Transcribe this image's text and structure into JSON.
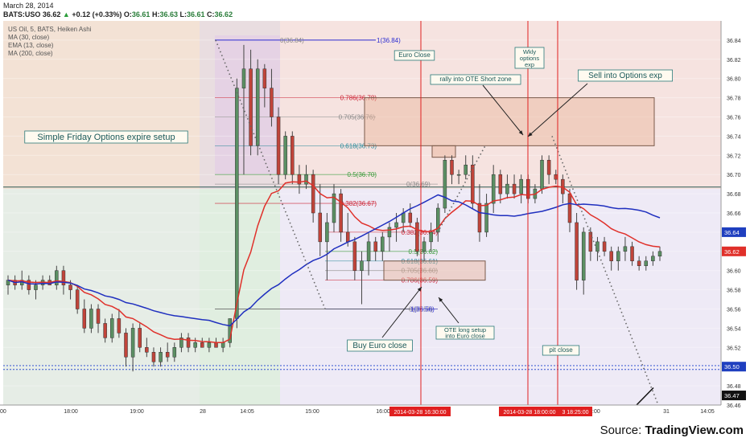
{
  "header": {
    "date": "March 28, 2014",
    "symbol": "BATS:USO",
    "last": "36.62",
    "change": "+0.12 (+0.33%)",
    "ohlc": [
      {
        "k": "O:",
        "v": "36.61"
      },
      {
        "k": "H:",
        "v": "36.63"
      },
      {
        "k": "L:",
        "v": "36.61"
      },
      {
        "k": "C:",
        "v": "36.62"
      }
    ]
  },
  "legend": {
    "title": "US Oil, 5, BATS, Heiken Ashi",
    "items": [
      "MA (30, close)",
      "EMA (13, close)",
      "MA (200, close)"
    ]
  },
  "source": {
    "prefix": "Source:",
    "brand": "TradingView.com"
  },
  "chart_data": {
    "type": "candlestick",
    "style": "Heiken Ashi",
    "title": "US Oil, 5, BATS, Heiken Ashi",
    "ylim": [
      36.46,
      36.86
    ],
    "yticks": [
      "36.84",
      "36.82",
      "36.80",
      "36.78",
      "36.76",
      "36.74",
      "36.72",
      "36.70",
      "36.68",
      "36.66",
      "36.64",
      "36.62",
      "36.60",
      "36.58",
      "36.56",
      "36.54",
      "36.52",
      "36.50",
      "36.48",
      "36.46"
    ],
    "xticks": [
      "00",
      "18:00",
      "19:00",
      "28",
      "14:05",
      "15:00",
      "16:00",
      "17:00",
      "18:00",
      "19:00",
      "31",
      "14:05"
    ],
    "markers": [
      "2014-03-28 16:30:00",
      "2014-03-28 18:00:00",
      "3 18:25:00"
    ],
    "price_tags": [
      {
        "value": "36.64",
        "color": "#1f3fbf"
      },
      {
        "value": "36.62",
        "color": "#e0302a"
      },
      {
        "value": "36.50",
        "color": "#1f3fbf"
      },
      {
        "value": "36.47",
        "color": "#111111"
      }
    ],
    "fib_upper": [
      {
        "label": "0(36.84)",
        "value": 36.84
      },
      {
        "label": "1(36.84)",
        "value": 36.84
      },
      {
        "label": "0.786(36.78)",
        "value": 36.78
      },
      {
        "label": "0.705(36.76)",
        "value": 36.76
      },
      {
        "label": "0.618(36.73)",
        "value": 36.73
      },
      {
        "label": "0.5(36.70)",
        "value": 36.7
      },
      {
        "label": "0(36.69)",
        "value": 36.69
      },
      {
        "label": "0.382(36.67)",
        "value": 36.67
      }
    ],
    "fib_lower": [
      {
        "label": "0.382(36.64)",
        "value": 36.64
      },
      {
        "label": "0.5(36.62)",
        "value": 36.62
      },
      {
        "label": "0.618(36.61)",
        "value": 36.61
      },
      {
        "label": "0.705(36.60)",
        "value": 36.6
      },
      {
        "label": "0.786(36.59)",
        "value": 36.59
      },
      {
        "label": "0(36.56)",
        "value": 36.56
      },
      {
        "label": "1(36.56)",
        "value": 36.56
      }
    ],
    "annotations": {
      "setup": "Simple Friday Options expire setup",
      "euro_close": "Euro Close",
      "wkly": [
        "Wkly",
        "options",
        "exp"
      ],
      "rally": "rally into OTE Short zone",
      "sell": "Sell into Options exp",
      "buy": "Buy Euro close",
      "ote_long": [
        "OTE long setup",
        "into Euro close"
      ],
      "pit_close": "pit close"
    },
    "series": [
      {
        "name": "MA (30, close)",
        "color": "#1f2fbf"
      },
      {
        "name": "EMA (13, close)",
        "color": "#e0302a"
      }
    ],
    "candles": [
      [
        36.585,
        36.595,
        36.575,
        36.59
      ],
      [
        36.59,
        36.595,
        36.58,
        36.585
      ],
      [
        36.585,
        36.6,
        36.58,
        36.59
      ],
      [
        36.59,
        36.595,
        36.575,
        36.58
      ],
      [
        36.58,
        36.59,
        36.57,
        36.585
      ],
      [
        36.585,
        36.595,
        36.58,
        36.59
      ],
      [
        36.59,
        36.595,
        36.585,
        36.585
      ],
      [
        36.585,
        36.605,
        36.58,
        36.6
      ],
      [
        36.6,
        36.605,
        36.575,
        36.585
      ],
      [
        36.585,
        36.59,
        36.57,
        36.58
      ],
      [
        36.58,
        36.585,
        36.555,
        36.56
      ],
      [
        36.56,
        36.57,
        36.535,
        36.54
      ],
      [
        36.54,
        36.565,
        36.535,
        36.56
      ],
      [
        36.56,
        36.565,
        36.535,
        36.545
      ],
      [
        36.545,
        36.55,
        36.525,
        36.53
      ],
      [
        36.53,
        36.555,
        36.525,
        36.55
      ],
      [
        36.55,
        36.56,
        36.53,
        36.535
      ],
      [
        36.535,
        36.54,
        36.5,
        36.51
      ],
      [
        36.51,
        36.545,
        36.495,
        36.54
      ],
      [
        36.54,
        36.545,
        36.515,
        36.52
      ],
      [
        36.52,
        36.53,
        36.51,
        36.515
      ],
      [
        36.515,
        36.52,
        36.5,
        36.505
      ],
      [
        36.505,
        36.52,
        36.5,
        36.515
      ],
      [
        36.515,
        36.525,
        36.505,
        36.51
      ],
      [
        36.51,
        36.525,
        36.505,
        36.52
      ],
      [
        36.52,
        36.535,
        36.515,
        36.53
      ],
      [
        36.53,
        36.535,
        36.515,
        36.52
      ],
      [
        36.52,
        36.53,
        36.515,
        36.525
      ],
      [
        36.525,
        36.53,
        36.52,
        36.52
      ],
      [
        36.52,
        36.53,
        36.515,
        36.525
      ],
      [
        36.525,
        36.53,
        36.52,
        36.52
      ],
      [
        36.52,
        36.53,
        36.515,
        36.525
      ],
      [
        36.525,
        36.55,
        36.52,
        36.55
      ],
      [
        36.55,
        36.8,
        36.54,
        36.79
      ],
      [
        36.79,
        36.835,
        36.7,
        36.81
      ],
      [
        36.81,
        36.83,
        36.72,
        36.73
      ],
      [
        36.73,
        36.82,
        36.72,
        36.81
      ],
      [
        36.81,
        36.815,
        36.77,
        36.79
      ],
      [
        36.79,
        36.81,
        36.75,
        36.76
      ],
      [
        36.76,
        36.77,
        36.69,
        36.7
      ],
      [
        36.7,
        36.745,
        36.695,
        36.74
      ],
      [
        36.74,
        36.745,
        36.69,
        36.7
      ],
      [
        36.7,
        36.71,
        36.68,
        36.69
      ],
      [
        36.69,
        36.71,
        36.685,
        36.7
      ],
      [
        36.7,
        36.705,
        36.65,
        36.66
      ],
      [
        36.66,
        36.69,
        36.615,
        36.63
      ],
      [
        36.63,
        36.66,
        36.59,
        36.65
      ],
      [
        36.65,
        36.69,
        36.64,
        36.68
      ],
      [
        36.68,
        36.685,
        36.63,
        36.64
      ],
      [
        36.64,
        36.66,
        36.625,
        36.63
      ],
      [
        36.63,
        36.635,
        36.59,
        36.6
      ],
      [
        36.6,
        36.62,
        36.565,
        36.61
      ],
      [
        36.61,
        36.64,
        36.595,
        36.63
      ],
      [
        36.63,
        36.635,
        36.61,
        36.62
      ],
      [
        36.62,
        36.64,
        36.61,
        36.635
      ],
      [
        36.635,
        36.65,
        36.62,
        36.645
      ],
      [
        36.645,
        36.66,
        36.63,
        36.65
      ],
      [
        36.65,
        36.665,
        36.64,
        36.66
      ],
      [
        36.66,
        36.67,
        36.645,
        36.65
      ],
      [
        36.65,
        36.655,
        36.615,
        36.62
      ],
      [
        36.62,
        36.635,
        36.61,
        36.63
      ],
      [
        36.63,
        36.65,
        36.62,
        36.64
      ],
      [
        36.64,
        36.67,
        36.63,
        36.665
      ],
      [
        36.665,
        36.72,
        36.66,
        36.715
      ],
      [
        36.715,
        36.72,
        36.69,
        36.7
      ],
      [
        36.7,
        36.705,
        36.69,
        36.7
      ],
      [
        36.7,
        36.72,
        36.695,
        36.71
      ],
      [
        36.71,
        36.72,
        36.665,
        36.67
      ],
      [
        36.67,
        36.69,
        36.63,
        36.64
      ],
      [
        36.64,
        36.68,
        36.635,
        36.67
      ],
      [
        36.67,
        36.71,
        36.66,
        36.7
      ],
      [
        36.7,
        36.705,
        36.67,
        36.68
      ],
      [
        36.68,
        36.7,
        36.675,
        36.69
      ],
      [
        36.69,
        36.7,
        36.675,
        36.68
      ],
      [
        36.68,
        36.7,
        36.67,
        36.695
      ],
      [
        36.695,
        36.7,
        36.67,
        36.675
      ],
      [
        36.675,
        36.69,
        36.67,
        36.685
      ],
      [
        36.685,
        36.72,
        36.68,
        36.715
      ],
      [
        36.715,
        36.72,
        36.69,
        36.7
      ],
      [
        36.7,
        36.705,
        36.69,
        36.695
      ],
      [
        36.695,
        36.7,
        36.67,
        36.68
      ],
      [
        36.68,
        36.685,
        36.64,
        36.65
      ],
      [
        36.65,
        36.66,
        36.58,
        36.59
      ],
      [
        36.59,
        36.645,
        36.575,
        36.64
      ],
      [
        36.64,
        36.645,
        36.61,
        36.62
      ],
      [
        36.62,
        36.635,
        36.61,
        36.63
      ],
      [
        36.63,
        36.635,
        36.615,
        36.62
      ],
      [
        36.62,
        36.625,
        36.6,
        36.61
      ],
      [
        36.61,
        36.625,
        36.6,
        36.62
      ],
      [
        36.62,
        36.635,
        36.61,
        36.625
      ],
      [
        36.625,
        36.63,
        36.605,
        36.61
      ],
      [
        36.61,
        36.615,
        36.6,
        36.605
      ],
      [
        36.605,
        36.615,
        36.6,
        36.61
      ],
      [
        36.61,
        36.62,
        36.605,
        36.615
      ],
      [
        36.615,
        36.625,
        36.61,
        36.62
      ]
    ]
  }
}
